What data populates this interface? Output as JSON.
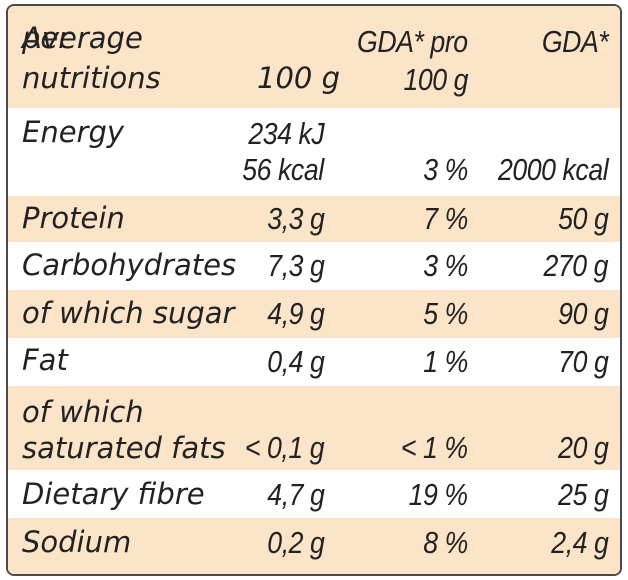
{
  "header": {
    "col0_line1": "Average",
    "col0_line2": "nutritions",
    "col1_line1": "per",
    "col1_line2": "100 g",
    "col2_line1": "GDA* pro",
    "col2_line2": "100 g",
    "col3_line1": "GDA*"
  },
  "rows": [
    {
      "name": "Energy",
      "per100_line1": "234 kJ",
      "per100_line2": "56 kcal",
      "gda_pct": "3 %",
      "gda": "2000 kcal"
    },
    {
      "name": "Protein",
      "per100": "3,3 g",
      "gda_pct": "7 %",
      "gda": "50 g"
    },
    {
      "name": "Carbohydrates",
      "per100": "7,3 g",
      "gda_pct": "3 %",
      "gda": "270 g"
    },
    {
      "name": "of which sugar",
      "per100": "4,9 g",
      "gda_pct": "5 %",
      "gda": "90 g"
    },
    {
      "name": "Fat",
      "per100": "0,4 g",
      "gda_pct": "1 %",
      "gda": "70 g"
    },
    {
      "name_line1": "of which",
      "name_line2": "saturated fats",
      "per100": "< 0,1 g",
      "gda_pct": "< 1 %",
      "gda": "20 g"
    },
    {
      "name": "Dietary fibre",
      "per100": "4,7 g",
      "gda_pct": "19 %",
      "gda": "25 g"
    },
    {
      "name": "Sodium",
      "per100": "0,2 g",
      "gda_pct": "8 %",
      "gda": "2,4 g"
    }
  ],
  "colors": {
    "shade": "#fbe4c8",
    "border": "#4a4a4a",
    "text": "#222222"
  }
}
